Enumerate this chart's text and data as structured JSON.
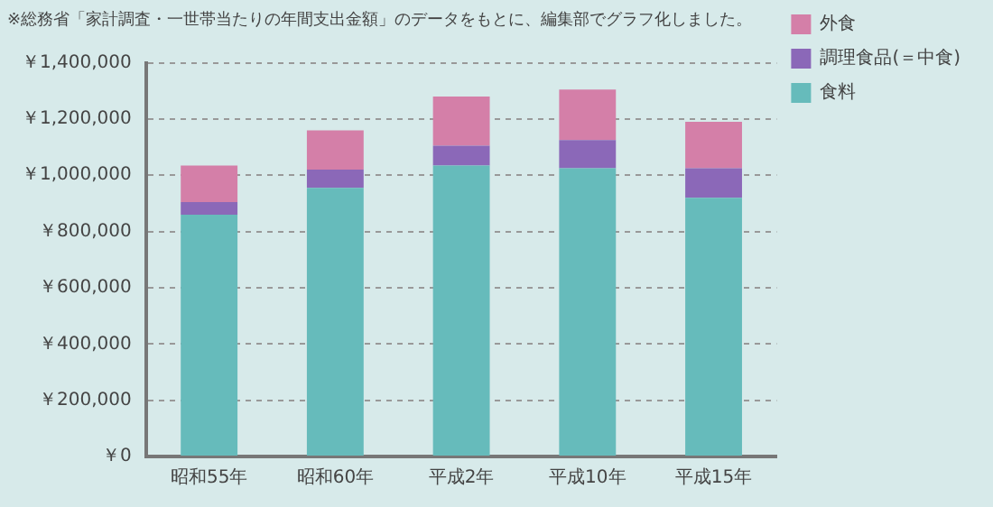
{
  "chart_data": {
    "type": "bar",
    "title": "※総務省「家計調査・一世帯当たりの年間支出金額」のデータをもとに、編集部でグラフ化しました。",
    "categories": [
      "昭和55年",
      "昭和60年",
      "平成2年",
      "平成10年",
      "平成15年"
    ],
    "stacked": true,
    "series": [
      {
        "name": "食料",
        "color": "#66bbbb",
        "values": [
          860000,
          955000,
          1035000,
          1025000,
          920000
        ]
      },
      {
        "name": "調理食品(＝中食)",
        "color": "#8b68b8",
        "values": [
          45000,
          65000,
          70000,
          100000,
          105000
        ]
      },
      {
        "name": "外食",
        "color": "#d47fa8",
        "values": [
          130000,
          140000,
          175000,
          180000,
          165000
        ]
      }
    ],
    "ylim": [
      0,
      1400000
    ],
    "yticks": [
      {
        "value": 0,
        "label": "￥0"
      },
      {
        "value": 200000,
        "label": "￥200,000"
      },
      {
        "value": 400000,
        "label": "￥400,000"
      },
      {
        "value": 600000,
        "label": "￥600,000"
      },
      {
        "value": 800000,
        "label": "￥800,000"
      },
      {
        "value": 1000000,
        "label": "￥1,000,000"
      },
      {
        "value": 1200000,
        "label": "￥1,200,000"
      },
      {
        "value": 1400000,
        "label": "￥1,400,000"
      }
    ],
    "grid": "y",
    "legend": "top right"
  }
}
